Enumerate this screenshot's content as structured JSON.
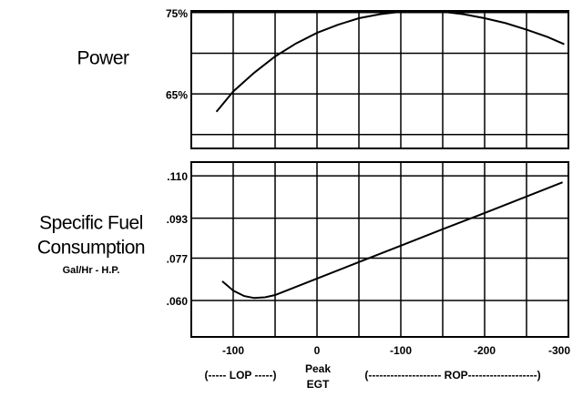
{
  "chart_data": [
    {
      "type": "line",
      "ylabel": "Power",
      "x": [
        -120,
        -100,
        -75,
        -50,
        -25,
        0,
        25,
        50,
        75,
        100,
        125,
        150,
        175,
        200,
        225,
        250,
        275,
        295
      ],
      "series": [
        {
          "color": "#000000",
          "values": [
            62.8,
            65.3,
            67.6,
            69.6,
            71.2,
            72.5,
            73.5,
            74.3,
            74.8,
            75.1,
            75.2,
            75.1,
            74.8,
            74.3,
            73.7,
            72.9,
            72.0,
            71.1
          ]
        }
      ],
      "ylim": [
        58.3,
        75.2
      ],
      "yticks": [
        {
          "value": 75,
          "label": "75%"
        },
        {
          "value": 65,
          "label": "65%"
        }
      ],
      "grid": true
    },
    {
      "type": "line",
      "ylabel": [
        "Specific Fuel",
        "Consumption"
      ],
      "ylabel_sub": "Gal/Hr - H.P.",
      "x": [
        -113,
        -100,
        -87,
        -75,
        -62,
        -50,
        0,
        50,
        100,
        150,
        200,
        250,
        293
      ],
      "series": [
        {
          "color": "#000000",
          "values": [
            0.0677,
            0.064,
            0.0618,
            0.061,
            0.0613,
            0.0622,
            0.0688,
            0.0754,
            0.082,
            0.0886,
            0.0951,
            0.1017,
            0.1074
          ]
        }
      ],
      "xlim": [
        -150,
        300
      ],
      "xticks": [
        -100,
        0,
        {
          "value": 100,
          "label": "-100"
        },
        {
          "value": 200,
          "label": "-200"
        },
        {
          "value": 300,
          "label": "-300"
        }
      ],
      "ylim": [
        0.0454,
        0.1155
      ],
      "yticks": [
        {
          "value": 0.11,
          "label": ".110"
        },
        {
          "value": 0.093,
          "label": ".093"
        },
        {
          "value": 0.077,
          "label": ".077"
        },
        {
          "value": 0.06,
          "label": ".060"
        }
      ],
      "grid": true,
      "annotations": [
        "(----- LOP -----)",
        "Peak",
        "EGT",
        "(-------------------- ROP-------------------)"
      ]
    }
  ]
}
